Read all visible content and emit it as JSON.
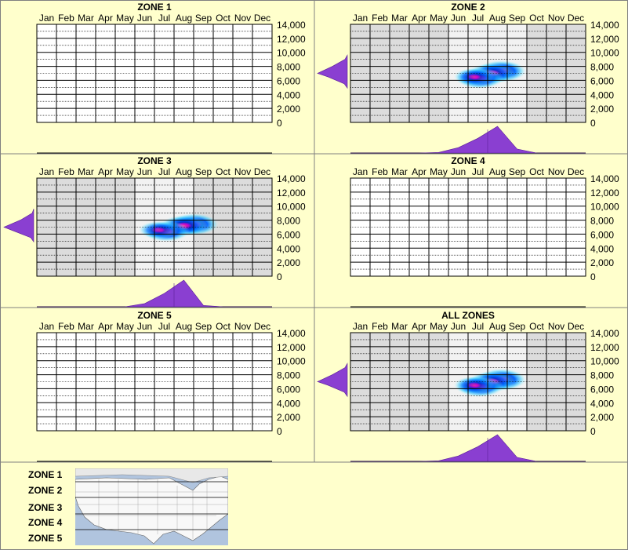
{
  "chart_data": [
    {
      "type": "heatmap",
      "title": "ZONE 1",
      "xlabels": [
        "Jan",
        "Feb",
        "Mar",
        "Apr",
        "May",
        "Jun",
        "Jul",
        "Aug",
        "Sep",
        "Oct",
        "Nov",
        "Dec"
      ],
      "yticks": [
        0,
        2000,
        4000,
        6000,
        8000,
        10000,
        12000,
        14000
      ],
      "ylim": [
        0,
        14000
      ],
      "observed_months": [],
      "peaks": [],
      "month_density": [],
      "elev_density": []
    },
    {
      "type": "heatmap",
      "title": "ZONE 2",
      "xlabels": [
        "Jan",
        "Feb",
        "Mar",
        "Apr",
        "May",
        "Jun",
        "Jul",
        "Aug",
        "Sep",
        "Oct",
        "Nov",
        "Dec"
      ],
      "yticks": [
        0,
        2000,
        4000,
        6000,
        8000,
        10000,
        12000,
        14000
      ],
      "ylim": [
        0,
        14000
      ],
      "observed_months": [
        "Jun",
        "Jul",
        "Aug",
        "Sep"
      ],
      "peaks": [
        {
          "month": 7.7,
          "elev": 7300,
          "intensity": 1.0
        },
        {
          "month": 7.2,
          "elev": 7000,
          "intensity": 0.8
        },
        {
          "month": 6.6,
          "elev": 6300,
          "intensity": 0.85
        },
        {
          "month": 6.3,
          "elev": 6500,
          "intensity": 0.4
        }
      ],
      "month_density": [
        0,
        0,
        0,
        0,
        0.02,
        0.2,
        0.55,
        1.0,
        0.15,
        0,
        0,
        0
      ],
      "elev_density": [
        {
          "elev": 5500,
          "value": 0.1
        },
        {
          "elev": 6500,
          "value": 0.65
        },
        {
          "elev": 7000,
          "value": 1.0
        },
        {
          "elev": 8000,
          "value": 0.5
        },
        {
          "elev": 9000,
          "value": 0.08
        }
      ]
    },
    {
      "type": "heatmap",
      "title": "ZONE 3",
      "xlabels": [
        "Jan",
        "Feb",
        "Mar",
        "Apr",
        "May",
        "Jun",
        "Jul",
        "Aug",
        "Sep",
        "Oct",
        "Nov",
        "Dec"
      ],
      "yticks": [
        0,
        2000,
        4000,
        6000,
        8000,
        10000,
        12000,
        14000
      ],
      "ylim": [
        0,
        14000
      ],
      "observed_months": [
        "Jun",
        "Jul",
        "Aug"
      ],
      "peaks": [
        {
          "month": 8.0,
          "elev": 7400,
          "intensity": 1.0
        },
        {
          "month": 7.5,
          "elev": 7200,
          "intensity": 0.85
        },
        {
          "month": 6.6,
          "elev": 6400,
          "intensity": 0.8
        },
        {
          "month": 6.2,
          "elev": 6600,
          "intensity": 0.35
        }
      ],
      "month_density": [
        0,
        0,
        0,
        0,
        0,
        0.12,
        0.5,
        1.0,
        0.05,
        0,
        0,
        0
      ],
      "elev_density": [
        {
          "elev": 5500,
          "value": 0.1
        },
        {
          "elev": 6500,
          "value": 0.7
        },
        {
          "elev": 7000,
          "value": 1.0
        },
        {
          "elev": 8000,
          "value": 0.45
        },
        {
          "elev": 9000,
          "value": 0.05
        }
      ]
    },
    {
      "type": "heatmap",
      "title": "ZONE 4",
      "xlabels": [
        "Jan",
        "Feb",
        "Mar",
        "Apr",
        "May",
        "Jun",
        "Jul",
        "Aug",
        "Sep",
        "Oct",
        "Nov",
        "Dec"
      ],
      "yticks": [
        0,
        2000,
        4000,
        6000,
        8000,
        10000,
        12000,
        14000
      ],
      "ylim": [
        0,
        14000
      ],
      "observed_months": [],
      "peaks": [],
      "month_density": [],
      "elev_density": []
    },
    {
      "type": "heatmap",
      "title": "ZONE 5",
      "xlabels": [
        "Jan",
        "Feb",
        "Mar",
        "Apr",
        "May",
        "Jun",
        "Jul",
        "Aug",
        "Sep",
        "Oct",
        "Nov",
        "Dec"
      ],
      "yticks": [
        0,
        2000,
        4000,
        6000,
        8000,
        10000,
        12000,
        14000
      ],
      "ylim": [
        0,
        14000
      ],
      "observed_months": [],
      "peaks": [],
      "month_density": [],
      "elev_density": []
    },
    {
      "type": "heatmap",
      "title": "ALL ZONES",
      "xlabels": [
        "Jan",
        "Feb",
        "Mar",
        "Apr",
        "May",
        "Jun",
        "Jul",
        "Aug",
        "Sep",
        "Oct",
        "Nov",
        "Dec"
      ],
      "yticks": [
        0,
        2000,
        4000,
        6000,
        8000,
        10000,
        12000,
        14000
      ],
      "ylim": [
        0,
        14000
      ],
      "observed_months": [
        "Jun",
        "Jul",
        "Aug",
        "Sep"
      ],
      "peaks": [
        {
          "month": 7.7,
          "elev": 7300,
          "intensity": 1.0
        },
        {
          "month": 7.2,
          "elev": 7000,
          "intensity": 0.8
        },
        {
          "month": 6.6,
          "elev": 6300,
          "intensity": 0.85
        },
        {
          "month": 6.3,
          "elev": 6500,
          "intensity": 0.4
        }
      ],
      "month_density": [
        0,
        0,
        0,
        0,
        0.02,
        0.2,
        0.55,
        1.0,
        0.15,
        0,
        0,
        0
      ],
      "elev_density": [
        {
          "elev": 5500,
          "value": 0.1
        },
        {
          "elev": 6500,
          "value": 0.65
        },
        {
          "elev": 7000,
          "value": 1.0
        },
        {
          "elev": 8000,
          "value": 0.5
        },
        {
          "elev": 9000,
          "value": 0.08
        }
      ]
    }
  ],
  "legend": {
    "zones": [
      "ZONE 1",
      "ZONE 2",
      "ZONE 3",
      "ZONE 4",
      "ZONE 5"
    ]
  },
  "colors": {
    "background": "#ffffcc",
    "observed_band": "#dcdcdc",
    "density": "#8a3fd1",
    "grid": "#000000"
  }
}
